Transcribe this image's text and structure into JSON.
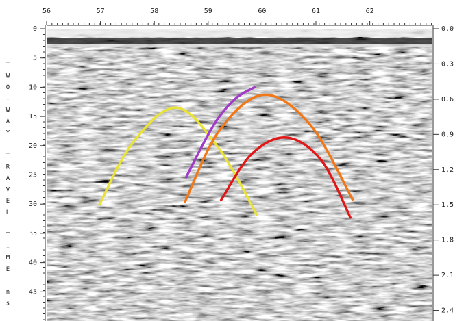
{
  "chart_data": {
    "type": "radargram",
    "y_label": "TWO-WAY TRAVEL TIME ns",
    "xlim": [
      56,
      63.15
    ],
    "xticks": [
      56,
      57,
      58,
      59,
      60,
      61,
      62
    ],
    "ylim": [
      0,
      50
    ],
    "yticks": [
      0,
      5,
      10,
      15,
      20,
      25,
      30,
      35,
      40,
      45
    ],
    "y2lim": [
      0,
      2.49
    ],
    "y2ticks": [
      {
        "value": 0,
        "label": "0.0"
      },
      {
        "value": 0.3,
        "label": "0.3"
      },
      {
        "value": 0.6,
        "label": "0.6"
      },
      {
        "value": 0.9,
        "label": "0.9"
      },
      {
        "value": 1.2,
        "label": "1.2"
      },
      {
        "value": 1.5,
        "label": "1.5"
      },
      {
        "value": 1.8,
        "label": "1.8"
      },
      {
        "value": 2.1,
        "label": "2.1"
      },
      {
        "value": 2.4,
        "label": "2.4"
      }
    ],
    "series": [
      {
        "color": "#e8e23a",
        "x": [
          56.98,
          57.6,
          58.41,
          59.2,
          59.9
        ],
        "values": [
          30.1,
          19.5,
          13.5,
          20.5,
          31.8
        ]
      },
      {
        "color": "#a03cc8",
        "x": [
          58.59,
          59.1,
          59.5,
          59.86
        ],
        "values": [
          25.4,
          16.5,
          12,
          10.0
        ]
      },
      {
        "color": "#f07818",
        "x": [
          58.57,
          59.2,
          60.03,
          60.9,
          61.68
        ],
        "values": [
          29.6,
          17.5,
          11.3,
          16.5,
          29.2
        ]
      },
      {
        "color": "#e01818",
        "x": [
          59.24,
          59.8,
          60.45,
          61.1,
          61.64
        ],
        "values": [
          29.3,
          21.5,
          18.6,
          22.5,
          32.3
        ]
      }
    ]
  }
}
